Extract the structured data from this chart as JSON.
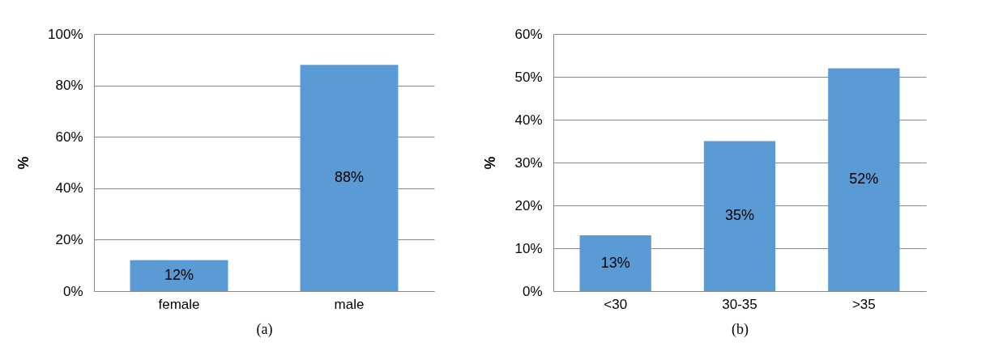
{
  "chart_data": [
    {
      "type": "bar",
      "xlabel": "(a)",
      "ylabel": "%",
      "categories": [
        "female",
        "male"
      ],
      "values": [
        12,
        88
      ],
      "value_labels": [
        "12%",
        "88%"
      ],
      "color": "#5b9bd5",
      "ylim": [
        0,
        100
      ],
      "yticks": [
        {
          "value": 0,
          "label": "0%"
        },
        {
          "value": 20,
          "label": "20%"
        },
        {
          "value": 40,
          "label": "40%"
        },
        {
          "value": 60,
          "label": "60%"
        },
        {
          "value": 80,
          "label": "80%"
        },
        {
          "value": 100,
          "label": "100%"
        }
      ],
      "grid": "y"
    },
    {
      "type": "bar",
      "xlabel": "(b)",
      "ylabel": "%",
      "categories": [
        "<30",
        "30-35",
        ">35"
      ],
      "values": [
        13,
        35,
        52
      ],
      "value_labels": [
        "13%",
        "35%",
        "52%"
      ],
      "color": "#5b9bd5",
      "ylim": [
        0,
        60
      ],
      "yticks": [
        {
          "value": 0,
          "label": "0%"
        },
        {
          "value": 10,
          "label": "10%"
        },
        {
          "value": 20,
          "label": "20%"
        },
        {
          "value": 30,
          "label": "30%"
        },
        {
          "value": 40,
          "label": "40%"
        },
        {
          "value": 50,
          "label": "50%"
        },
        {
          "value": 60,
          "label": "60%"
        }
      ],
      "grid": "y"
    }
  ]
}
